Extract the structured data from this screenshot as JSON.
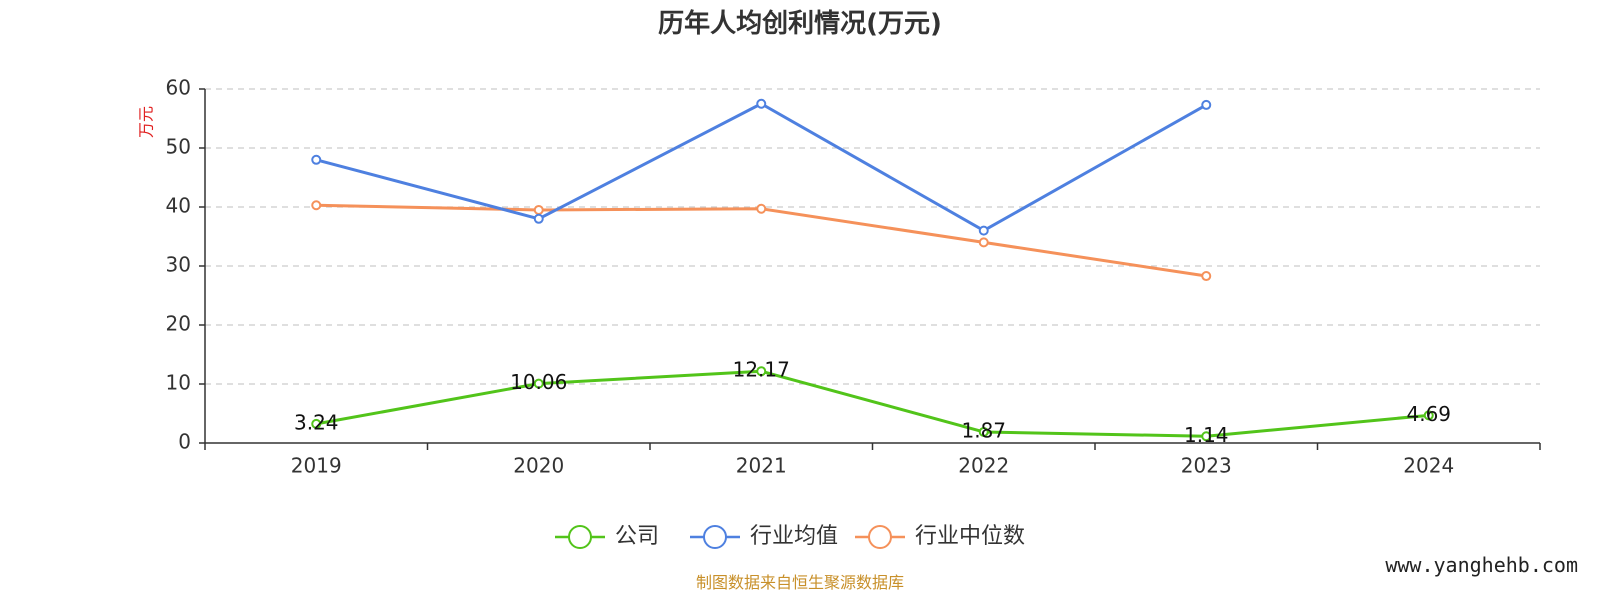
{
  "chart_data": {
    "type": "line",
    "title": "历年人均创利情况(万元)",
    "ylabel": "万元",
    "categories": [
      "2019",
      "2020",
      "2021",
      "2022",
      "2023",
      "2024"
    ],
    "ylim": [
      0,
      60
    ],
    "yticks": [
      "0",
      "10",
      "20",
      "30",
      "40",
      "50",
      "60"
    ],
    "grid": true,
    "legend_position": "bottom-center",
    "series": [
      {
        "name": "公司",
        "color": "#52c41a",
        "values": [
          3.24,
          10.06,
          12.17,
          1.87,
          1.14,
          4.69
        ],
        "labels": [
          "3.24",
          "10.06",
          "12.17",
          "1.87",
          "1.14",
          "4.69"
        ]
      },
      {
        "name": "行业均值",
        "color": "#4e80e0",
        "values": [
          48.0,
          38.0,
          57.5,
          36.0,
          57.3,
          null
        ]
      },
      {
        "name": "行业中位数",
        "color": "#f5915a",
        "values": [
          40.3,
          39.5,
          39.7,
          34.0,
          28.3,
          null
        ]
      }
    ]
  },
  "source_text": "制图数据来自恒生聚源数据库",
  "watermark": "www.yanghehb.com"
}
